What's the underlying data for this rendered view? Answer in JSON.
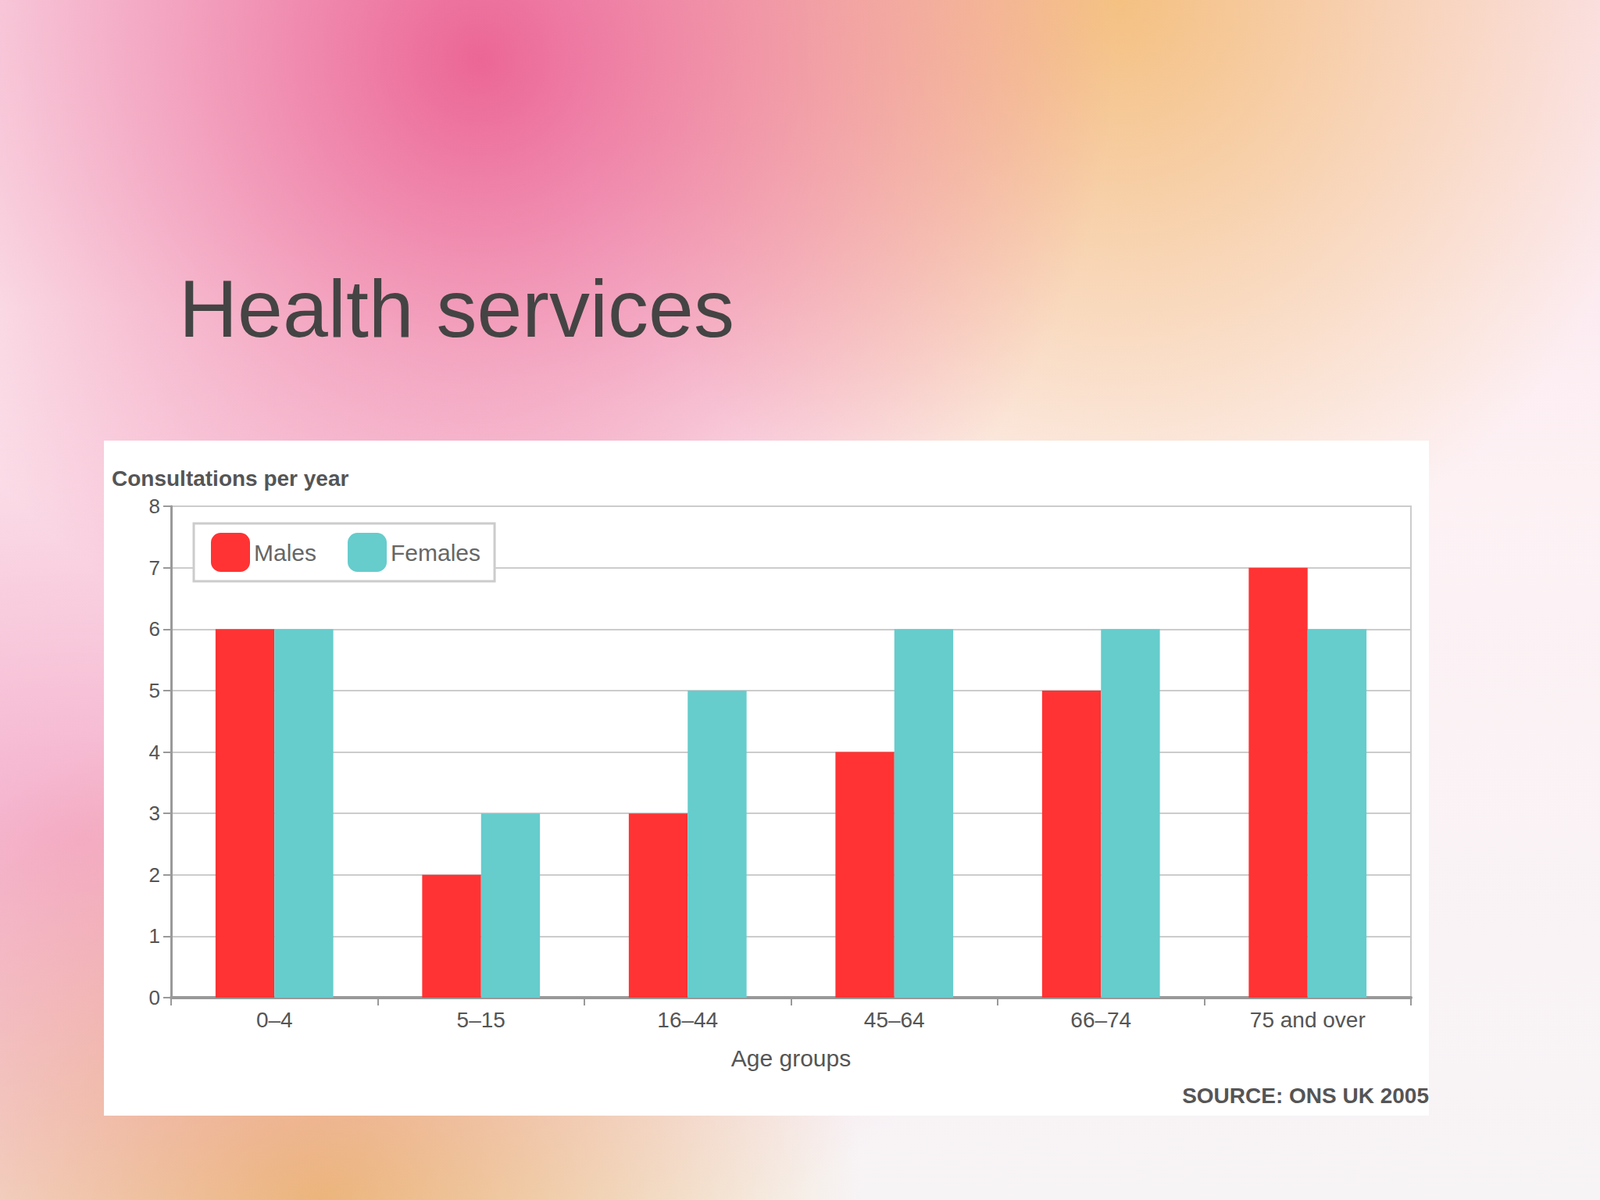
{
  "chart_data": {
    "type": "bar",
    "title": "Health services",
    "ylabel": "Consultations per year",
    "xlabel": "Age groups",
    "annotations": [
      "SOURCE: ONS UK 2005"
    ],
    "categories": [
      "0–4",
      "5–15",
      "16–44",
      "45–64",
      "66–74",
      "75 and over"
    ],
    "series": [
      {
        "name": "Males",
        "color": "#ff3333",
        "values": [
          6,
          2,
          3,
          4,
          5,
          7
        ]
      },
      {
        "name": "Females",
        "color": "#66cccc",
        "values": [
          6,
          3,
          5,
          6,
          6,
          6
        ]
      }
    ],
    "ylim": [
      0,
      8
    ],
    "yticks": [
      0,
      1,
      2,
      3,
      4,
      5,
      6,
      7,
      8
    ],
    "grid": true,
    "legend": "top-left"
  }
}
